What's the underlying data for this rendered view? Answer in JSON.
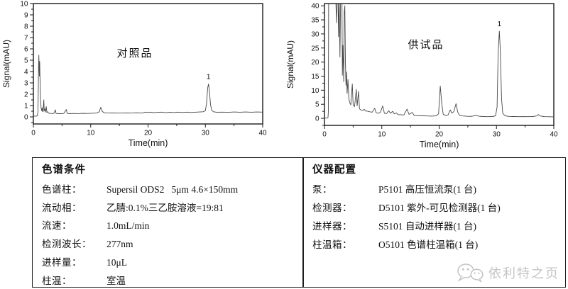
{
  "colors": {
    "trace": "#474747",
    "axis": "#1a1a1a",
    "text": "#111111",
    "table_border": "#1c1c1c",
    "watermark": "#c4c4c4"
  },
  "chart_data": [
    {
      "type": "line",
      "name": "reference-chromatogram",
      "title": "对照品",
      "xlabel": "Time(min)",
      "ylabel": "Signal(mAU)",
      "xlim": [
        0,
        40
      ],
      "ylim": [
        -0.625,
        10
      ],
      "x_major": 10,
      "x_minor": 5,
      "y_major": 1,
      "y_minor": 0.5,
      "grid": false,
      "peak_label": {
        "text": "1",
        "x": 30.55,
        "y": 2.9
      },
      "points": [
        [
          0,
          0.07
        ],
        [
          0.55,
          0.07
        ],
        [
          0.7,
          0.1
        ],
        [
          0.8,
          0.5
        ],
        [
          0.9,
          4.2
        ],
        [
          0.95,
          5.45
        ],
        [
          1.0,
          4.4
        ],
        [
          1.05,
          3.6
        ],
        [
          1.1,
          4.9
        ],
        [
          1.18,
          3.0
        ],
        [
          1.25,
          1.5
        ],
        [
          1.35,
          0.8
        ],
        [
          1.45,
          0.55
        ],
        [
          1.55,
          0.8
        ],
        [
          1.6,
          0.5
        ],
        [
          1.7,
          0.45
        ],
        [
          1.82,
          1.5
        ],
        [
          1.9,
          0.55
        ],
        [
          2.0,
          0.7
        ],
        [
          2.1,
          0.42
        ],
        [
          2.25,
          0.9
        ],
        [
          2.35,
          0.4
        ],
        [
          2.5,
          0.45
        ],
        [
          2.65,
          0.33
        ],
        [
          2.9,
          0.3
        ],
        [
          3.2,
          0.3
        ],
        [
          3.55,
          0.3
        ],
        [
          3.85,
          0.62
        ],
        [
          3.95,
          0.3
        ],
        [
          4.3,
          0.28
        ],
        [
          4.8,
          0.28
        ],
        [
          5.3,
          0.3
        ],
        [
          5.75,
          0.65
        ],
        [
          5.9,
          0.3
        ],
        [
          6.4,
          0.28
        ],
        [
          7,
          0.3
        ],
        [
          7.8,
          0.29
        ],
        [
          8.6,
          0.31
        ],
        [
          9.4,
          0.3
        ],
        [
          10.2,
          0.32
        ],
        [
          11,
          0.34
        ],
        [
          11.5,
          0.45
        ],
        [
          11.75,
          0.85
        ],
        [
          12.0,
          0.5
        ],
        [
          12.3,
          0.37
        ],
        [
          13,
          0.34
        ],
        [
          14,
          0.35
        ],
        [
          15,
          0.33
        ],
        [
          16,
          0.35
        ],
        [
          17,
          0.34
        ],
        [
          18,
          0.36
        ],
        [
          19,
          0.35
        ],
        [
          19.6,
          0.42
        ],
        [
          20,
          0.38
        ],
        [
          20.5,
          0.42
        ],
        [
          21,
          0.37
        ],
        [
          21.7,
          0.4
        ],
        [
          22.4,
          0.42
        ],
        [
          23,
          0.37
        ],
        [
          23.8,
          0.41
        ],
        [
          24.5,
          0.38
        ],
        [
          25.2,
          0.42
        ],
        [
          26,
          0.39
        ],
        [
          26.8,
          0.42
        ],
        [
          27.5,
          0.39
        ],
        [
          28.2,
          0.41
        ],
        [
          29,
          0.43
        ],
        [
          29.6,
          0.45
        ],
        [
          30.0,
          0.55
        ],
        [
          30.2,
          1.2
        ],
        [
          30.4,
          2.55
        ],
        [
          30.55,
          2.9
        ],
        [
          30.7,
          2.3
        ],
        [
          30.9,
          1.1
        ],
        [
          31.1,
          0.6
        ],
        [
          31.4,
          0.45
        ],
        [
          32,
          0.41
        ],
        [
          33,
          0.42
        ],
        [
          34,
          0.4
        ],
        [
          35,
          0.43
        ],
        [
          36,
          0.41
        ],
        [
          37,
          0.43
        ],
        [
          38,
          0.41
        ],
        [
          39,
          0.43
        ],
        [
          40,
          0.42
        ]
      ]
    },
    {
      "type": "line",
      "name": "test-chromatogram",
      "title": "供试品",
      "xlabel": "Time(min)",
      "ylabel": "Signal(mAU)",
      "xlim": [
        0,
        40
      ],
      "ylim": [
        -2.5,
        40.8
      ],
      "x_major": 10,
      "x_minor": 5,
      "y_major": 5,
      "y_minor": 2.5,
      "grid": false,
      "peak_label": {
        "text": "1",
        "x": 30.5,
        "y": 31
      },
      "points": [
        [
          0,
          0.1
        ],
        [
          0.5,
          0.1
        ],
        [
          0.62,
          0.3
        ],
        [
          0.68,
          2.6
        ],
        [
          0.73,
          44
        ],
        [
          1.95,
          44
        ],
        [
          2.1,
          34
        ],
        [
          2.2,
          44
        ],
        [
          2.35,
          44
        ],
        [
          2.45,
          29
        ],
        [
          2.55,
          44
        ],
        [
          2.7,
          21.8
        ],
        [
          2.82,
          44
        ],
        [
          3.05,
          44
        ],
        [
          3.12,
          15.3
        ],
        [
          3.22,
          26
        ],
        [
          3.35,
          13
        ],
        [
          3.45,
          38
        ],
        [
          3.55,
          40
        ],
        [
          3.65,
          20
        ],
        [
          3.75,
          11.8
        ],
        [
          3.85,
          16.5
        ],
        [
          3.95,
          8.8
        ],
        [
          4.1,
          13.8
        ],
        [
          4.25,
          7.2
        ],
        [
          4.4,
          5.6
        ],
        [
          4.6,
          4.8
        ],
        [
          4.85,
          12.2
        ],
        [
          5.0,
          4.7
        ],
        [
          5.25,
          4.2
        ],
        [
          5.55,
          10.3
        ],
        [
          5.7,
          4.4
        ],
        [
          5.95,
          9.6
        ],
        [
          6.1,
          3.4
        ],
        [
          6.35,
          3.0
        ],
        [
          6.65,
          2.8
        ],
        [
          6.95,
          3.2
        ],
        [
          7.15,
          2.6
        ],
        [
          7.55,
          2.5
        ],
        [
          7.95,
          2.3
        ],
        [
          8.35,
          2.2
        ],
        [
          8.75,
          3.6
        ],
        [
          9.0,
          2.0
        ],
        [
          9.35,
          1.8
        ],
        [
          9.75,
          2.1
        ],
        [
          10.15,
          4.4
        ],
        [
          10.45,
          1.8
        ],
        [
          10.85,
          1.7
        ],
        [
          11.2,
          2.7
        ],
        [
          11.5,
          1.8
        ],
        [
          11.9,
          2.5
        ],
        [
          12.15,
          1.6
        ],
        [
          12.55,
          1.9
        ],
        [
          12.85,
          1.3
        ],
        [
          13.35,
          1.3
        ],
        [
          13.85,
          1.2
        ],
        [
          14.4,
          3.3
        ],
        [
          14.75,
          1.4
        ],
        [
          15.3,
          2.1
        ],
        [
          15.65,
          1.0
        ],
        [
          16.3,
          0.95
        ],
        [
          17.1,
          0.9
        ],
        [
          17.9,
          0.85
        ],
        [
          18.7,
          0.8
        ],
        [
          19.5,
          0.9
        ],
        [
          19.9,
          1.6
        ],
        [
          20.2,
          11.5
        ],
        [
          20.45,
          5.5
        ],
        [
          20.7,
          1.5
        ],
        [
          21.1,
          1.0
        ],
        [
          21.55,
          1.2
        ],
        [
          21.95,
          3.0
        ],
        [
          22.2,
          1.9
        ],
        [
          22.55,
          2.3
        ],
        [
          22.95,
          5.2
        ],
        [
          23.25,
          2.2
        ],
        [
          23.55,
          1.1
        ],
        [
          24.1,
          0.85
        ],
        [
          24.8,
          0.75
        ],
        [
          25.5,
          0.7
        ],
        [
          26.05,
          0.85
        ],
        [
          26.45,
          1.05
        ],
        [
          26.95,
          0.75
        ],
        [
          27.65,
          0.65
        ],
        [
          28.45,
          0.6
        ],
        [
          29.25,
          0.65
        ],
        [
          29.85,
          0.9
        ],
        [
          30.1,
          4
        ],
        [
          30.3,
          24
        ],
        [
          30.5,
          31
        ],
        [
          30.68,
          24
        ],
        [
          30.88,
          7
        ],
        [
          31.1,
          1.8
        ],
        [
          31.5,
          0.9
        ],
        [
          32.2,
          0.7
        ],
        [
          33.0,
          0.65
        ],
        [
          33.9,
          0.6
        ],
        [
          34.7,
          0.62
        ],
        [
          35.5,
          0.6
        ],
        [
          36.3,
          0.65
        ],
        [
          37.0,
          0.85
        ],
        [
          37.3,
          1.35
        ],
        [
          37.65,
          0.85
        ],
        [
          38.4,
          0.6
        ],
        [
          39.2,
          0.58
        ],
        [
          40,
          0.55
        ]
      ]
    }
  ],
  "panels": {
    "left": {
      "header": "色谱条件",
      "rows": [
        {
          "label": "色谱柱：",
          "value": "Supersil ODS2   5μm 4.6×150mm"
        },
        {
          "label": "流动相：",
          "value": "乙腈:0.1%三乙胺溶液=19:81"
        },
        {
          "label": "流速：",
          "value": "1.0mL/min"
        },
        {
          "label": "检测波长：",
          "value": "277nm"
        },
        {
          "label": "进样量：",
          "value": "10μL"
        },
        {
          "label": "柱温：",
          "value": "室温"
        }
      ]
    },
    "right": {
      "header": "仪器配置",
      "rows": [
        {
          "label": "泵：",
          "value": "P5101 高压恒流泵(1 台)"
        },
        {
          "label": "检测器：",
          "value": "D5101 紫外-可见检测器(1 台)"
        },
        {
          "label": "进样器：",
          "value": "S5101 自动进样器(1 台)"
        },
        {
          "label": "柱温箱：",
          "value": "O5101 色谱柱温箱(1 台)"
        }
      ]
    }
  },
  "watermark": {
    "text": "依利特之页",
    "icon": "wechat-logo-icon"
  }
}
